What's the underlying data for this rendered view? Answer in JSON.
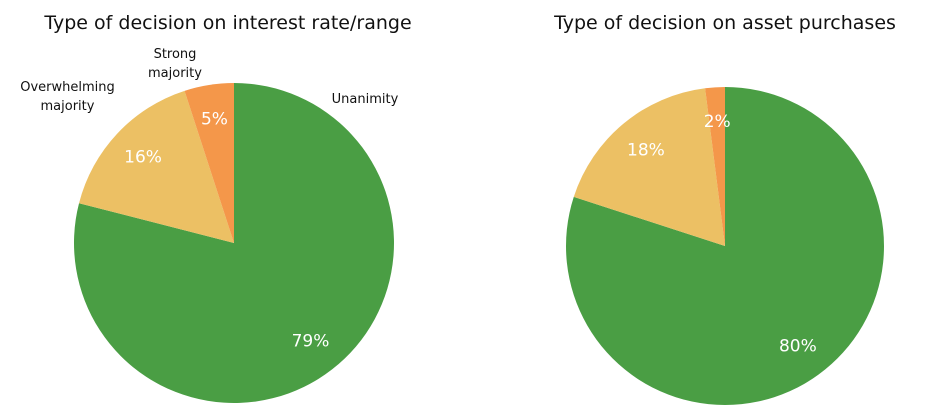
{
  "chart_data": [
    {
      "type": "pie",
      "title": "Type of decision on interest rate/range",
      "categories": [
        "Unanimity",
        "Overwhelming majority",
        "Strong majority"
      ],
      "values": [
        79,
        16,
        5
      ],
      "value_labels": [
        "79%",
        "16%",
        "5%"
      ],
      "colors": [
        "#4a9e44",
        "#ecc064",
        "#f4974a"
      ]
    },
    {
      "type": "pie",
      "title": "Type of decision on asset purchases",
      "values": [
        80,
        18,
        2
      ],
      "value_labels": [
        "80%",
        "18%",
        "2%"
      ],
      "colors": [
        "#4a9e44",
        "#ecc064",
        "#f4974a"
      ]
    }
  ]
}
